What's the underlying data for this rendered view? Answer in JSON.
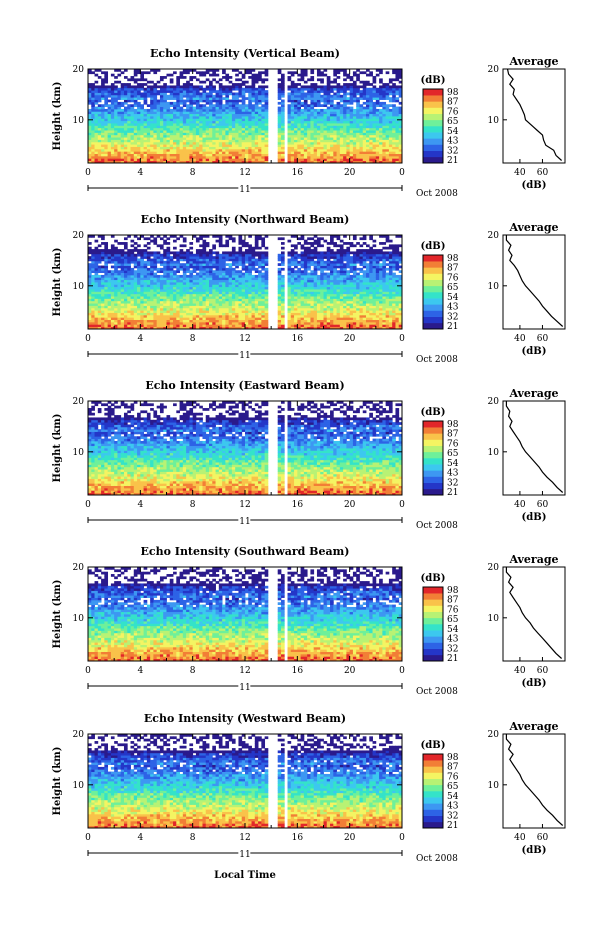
{
  "figure": {
    "x_axis_label": "Local Time",
    "date_label": "Oct 2008",
    "day_label": "11"
  },
  "colors": {
    "scale": [
      "#2a1a8c",
      "#2436c8",
      "#2d63e6",
      "#3d97f2",
      "#3cc8ef",
      "#34e3c9",
      "#6ef09a",
      "#b8f274",
      "#f4f462",
      "#f9c24a",
      "#f27e36",
      "#e2262a"
    ],
    "gap": "#ffffff",
    "line": "#000000"
  },
  "chart_data": [
    {
      "type": "heatmap",
      "title": "Echo Intensity (Vertical Beam)",
      "ylabel": "Height (km)",
      "xlabel": "Local Time",
      "x_ticks": [
        "0",
        "4",
        "8",
        "12",
        "16",
        "20",
        "0"
      ],
      "xlim": [
        0,
        24
      ],
      "y_ticks": [
        "20",
        "10"
      ],
      "ylim": [
        1.5,
        20
      ],
      "data_gaps_hours": [
        [
          13.8,
          14.5
        ],
        [
          15.0,
          15.2
        ]
      ],
      "colorbar": {
        "unit": "(dB)",
        "ticks": [
          "98",
          "87",
          "76",
          "65",
          "54",
          "43",
          "32",
          "21"
        ]
      },
      "average_profile": {
        "title": "Average",
        "xlabel": "(dB)",
        "x_ticks": [
          "40",
          "60"
        ],
        "xlim": [
          25,
          80
        ],
        "height_km": [
          2,
          3,
          4,
          5,
          6,
          7,
          8,
          9,
          10,
          11,
          12,
          13,
          14,
          15,
          16,
          17,
          18,
          19,
          20
        ],
        "intensity_db": [
          77,
          72,
          70,
          63,
          61,
          60,
          55,
          50,
          45,
          44,
          42,
          40,
          37,
          34,
          35,
          31,
          34,
          30,
          29
        ]
      }
    },
    {
      "type": "heatmap",
      "title": "Echo Intensity (Northward Beam)",
      "ylabel": "Height (km)",
      "xlabel": "Local Time",
      "x_ticks": [
        "0",
        "4",
        "8",
        "12",
        "16",
        "20",
        "0"
      ],
      "xlim": [
        0,
        24
      ],
      "y_ticks": [
        "20",
        "10"
      ],
      "ylim": [
        1.5,
        20
      ],
      "data_gaps_hours": [
        [
          13.8,
          14.5
        ],
        [
          15.0,
          15.2
        ]
      ],
      "colorbar": {
        "unit": "(dB)",
        "ticks": [
          "98",
          "87",
          "76",
          "65",
          "54",
          "43",
          "32",
          "21"
        ]
      },
      "average_profile": {
        "title": "Average",
        "xlabel": "(dB)",
        "x_ticks": [
          "40",
          "60"
        ],
        "xlim": [
          25,
          80
        ],
        "height_km": [
          2,
          3,
          4,
          5,
          6,
          7,
          8,
          9,
          10,
          11,
          12,
          13,
          14,
          15,
          16,
          17,
          18,
          19,
          20
        ],
        "intensity_db": [
          78,
          73,
          68,
          64,
          60,
          57,
          53,
          49,
          45,
          42,
          40,
          38,
          35,
          31,
          33,
          30,
          32,
          28,
          28
        ]
      }
    },
    {
      "type": "heatmap",
      "title": "Echo Intensity (Eastward Beam)",
      "ylabel": "Height (km)",
      "xlabel": "Local Time",
      "x_ticks": [
        "0",
        "4",
        "8",
        "12",
        "16",
        "20",
        "0"
      ],
      "xlim": [
        0,
        24
      ],
      "y_ticks": [
        "20",
        "10"
      ],
      "ylim": [
        1.5,
        20
      ],
      "data_gaps_hours": [
        [
          13.8,
          14.5
        ],
        [
          15.0,
          15.2
        ]
      ],
      "colorbar": {
        "unit": "(dB)",
        "ticks": [
          "98",
          "87",
          "76",
          "65",
          "54",
          "43",
          "32",
          "21"
        ]
      },
      "average_profile": {
        "title": "Average",
        "xlabel": "(dB)",
        "x_ticks": [
          "40",
          "60"
        ],
        "xlim": [
          25,
          80
        ],
        "height_km": [
          2,
          3,
          4,
          5,
          6,
          7,
          8,
          9,
          10,
          11,
          12,
          13,
          14,
          15,
          16,
          17,
          18,
          19,
          20
        ],
        "intensity_db": [
          78,
          73,
          69,
          64,
          60,
          57,
          53,
          49,
          45,
          42,
          40,
          37,
          34,
          31,
          33,
          30,
          31,
          28,
          28
        ]
      }
    },
    {
      "type": "heatmap",
      "title": "Echo Intensity (Southward Beam)",
      "ylabel": "Height (km)",
      "xlabel": "Local Time",
      "x_ticks": [
        "0",
        "4",
        "8",
        "12",
        "16",
        "20",
        "0"
      ],
      "xlim": [
        0,
        24
      ],
      "y_ticks": [
        "20",
        "10"
      ],
      "ylim": [
        1.5,
        20
      ],
      "data_gaps_hours": [
        [
          13.8,
          14.5
        ],
        [
          15.0,
          15.2
        ]
      ],
      "colorbar": {
        "unit": "(dB)",
        "ticks": [
          "98",
          "87",
          "76",
          "65",
          "54",
          "43",
          "32",
          "21"
        ]
      },
      "average_profile": {
        "title": "Average",
        "xlabel": "(dB)",
        "x_ticks": [
          "40",
          "60"
        ],
        "xlim": [
          25,
          80
        ],
        "height_km": [
          2,
          3,
          4,
          5,
          6,
          7,
          8,
          9,
          10,
          11,
          12,
          13,
          14,
          15,
          16,
          17,
          18,
          19,
          20
        ],
        "intensity_db": [
          77,
          72,
          68,
          64,
          60,
          56,
          52,
          49,
          45,
          42,
          40,
          37,
          34,
          31,
          34,
          30,
          32,
          28,
          28
        ]
      }
    },
    {
      "type": "heatmap",
      "title": "Echo Intensity (Westward Beam)",
      "ylabel": "Height (km)",
      "xlabel": "Local Time",
      "x_ticks": [
        "0",
        "4",
        "8",
        "12",
        "16",
        "20",
        "0"
      ],
      "xlim": [
        0,
        24
      ],
      "y_ticks": [
        "20",
        "10"
      ],
      "ylim": [
        1.5,
        20
      ],
      "data_gaps_hours": [
        [
          13.8,
          14.5
        ],
        [
          15.0,
          15.2
        ]
      ],
      "colorbar": {
        "unit": "(dB)",
        "ticks": [
          "98",
          "87",
          "76",
          "65",
          "54",
          "43",
          "32",
          "21"
        ]
      },
      "average_profile": {
        "title": "Average",
        "xlabel": "(dB)",
        "x_ticks": [
          "40",
          "60"
        ],
        "xlim": [
          25,
          80
        ],
        "height_km": [
          2,
          3,
          4,
          5,
          6,
          7,
          8,
          9,
          10,
          11,
          12,
          13,
          14,
          15,
          16,
          17,
          18,
          19,
          20
        ],
        "intensity_db": [
          78,
          73,
          69,
          64,
          60,
          57,
          53,
          49,
          45,
          42,
          40,
          37,
          34,
          31,
          34,
          30,
          32,
          28,
          28
        ]
      }
    }
  ]
}
